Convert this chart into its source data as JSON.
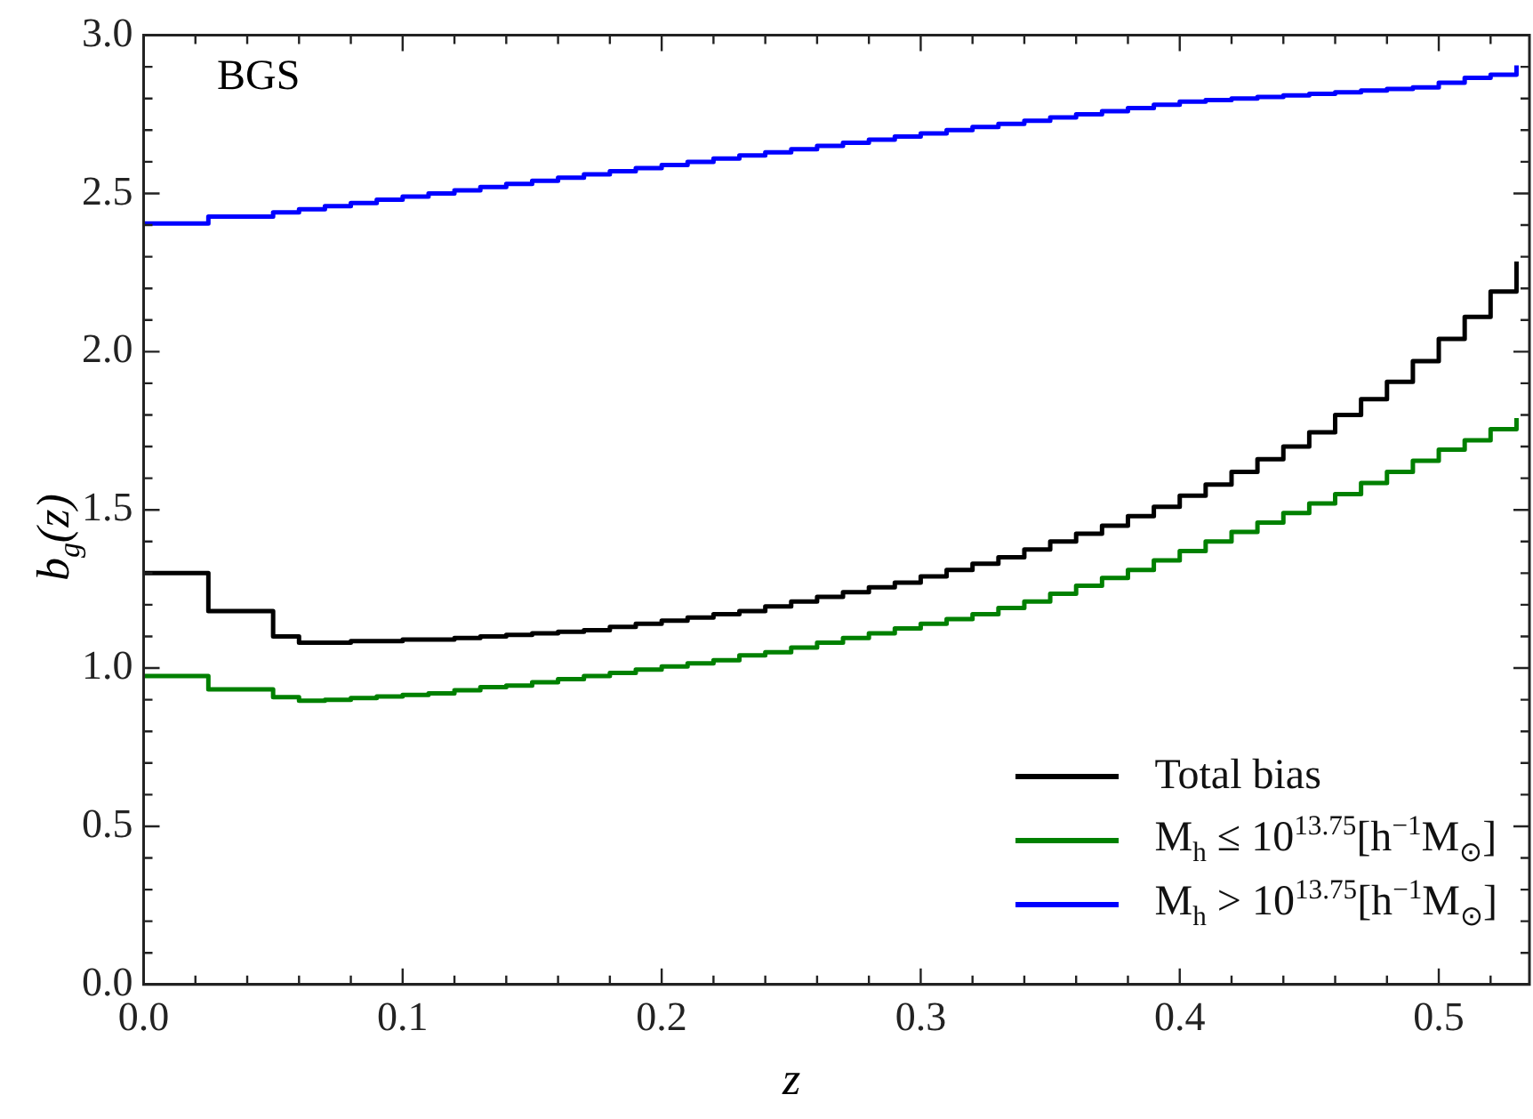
{
  "chart_data": {
    "type": "step",
    "xlabel": "z",
    "ylabel": "b$_{g}$(z)",
    "annotations": [
      "BGS"
    ],
    "x": [
      0,
      0.025,
      0.05,
      0.06,
      0.07,
      0.08,
      0.09,
      0.1,
      0.11,
      0.12,
      0.13,
      0.14,
      0.15,
      0.16,
      0.17,
      0.18,
      0.19,
      0.2,
      0.21,
      0.22,
      0.23,
      0.24,
      0.25,
      0.26,
      0.27,
      0.28,
      0.29,
      0.3,
      0.31,
      0.32,
      0.33,
      0.34,
      0.35,
      0.36,
      0.37,
      0.38,
      0.39,
      0.4,
      0.41,
      0.42,
      0.43,
      0.44,
      0.45,
      0.46,
      0.47,
      0.48,
      0.49,
      0.5,
      0.51,
      0.52,
      0.53
    ],
    "series": [
      {
        "name": "Total bias",
        "color": "#000000",
        "values": [
          1.3,
          1.18,
          1.1,
          1.08,
          1.08,
          1.085,
          1.085,
          1.09,
          1.09,
          1.095,
          1.1,
          1.105,
          1.11,
          1.115,
          1.12,
          1.13,
          1.14,
          1.15,
          1.16,
          1.17,
          1.18,
          1.195,
          1.21,
          1.225,
          1.24,
          1.255,
          1.27,
          1.29,
          1.31,
          1.33,
          1.35,
          1.375,
          1.4,
          1.425,
          1.45,
          1.48,
          1.51,
          1.545,
          1.58,
          1.62,
          1.66,
          1.7,
          1.745,
          1.8,
          1.85,
          1.905,
          1.97,
          2.04,
          2.11,
          2.19,
          2.285
        ]
      },
      {
        "name": "M$_{h}$ ≤ 10$^{13.75}$[h$^{−1}$M$_{⊙}$]",
        "color": "#008000",
        "values": [
          0.975,
          0.933,
          0.908,
          0.897,
          0.9,
          0.905,
          0.91,
          0.915,
          0.92,
          0.93,
          0.94,
          0.945,
          0.955,
          0.965,
          0.975,
          0.985,
          0.995,
          1.005,
          1.015,
          1.025,
          1.04,
          1.05,
          1.065,
          1.08,
          1.095,
          1.11,
          1.125,
          1.14,
          1.155,
          1.17,
          1.19,
          1.21,
          1.235,
          1.26,
          1.285,
          1.31,
          1.34,
          1.37,
          1.4,
          1.43,
          1.46,
          1.49,
          1.52,
          1.55,
          1.585,
          1.62,
          1.655,
          1.69,
          1.72,
          1.755,
          1.79
        ]
      },
      {
        "name": "M$_{h}$ > 10$^{13.75}$[h$^{−1}$M$_{⊙}$]",
        "color": "#0000ff",
        "values": [
          2.405,
          2.427,
          2.44,
          2.45,
          2.46,
          2.47,
          2.48,
          2.49,
          2.5,
          2.51,
          2.52,
          2.53,
          2.54,
          2.55,
          2.56,
          2.57,
          2.58,
          2.59,
          2.6,
          2.61,
          2.62,
          2.63,
          2.64,
          2.65,
          2.66,
          2.67,
          2.68,
          2.69,
          2.7,
          2.71,
          2.72,
          2.73,
          2.74,
          2.75,
          2.76,
          2.77,
          2.78,
          2.79,
          2.795,
          2.8,
          2.805,
          2.81,
          2.815,
          2.82,
          2.825,
          2.83,
          2.835,
          2.85,
          2.865,
          2.875,
          2.905
        ]
      }
    ],
    "xlim": [
      0,
      0.535
    ],
    "xticks": [
      {
        "value": 0,
        "label": "0.0"
      },
      {
        "value": 0.02,
        "label": null
      },
      {
        "value": 0.04,
        "label": null
      },
      {
        "value": 0.06,
        "label": null
      },
      {
        "value": 0.08,
        "label": null
      },
      0.1,
      {
        "value": 0.12,
        "label": null
      },
      {
        "value": 0.14,
        "label": null
      },
      {
        "value": 0.16,
        "label": null
      },
      {
        "value": 0.18,
        "label": null
      },
      0.2,
      {
        "value": 0.22,
        "label": null
      },
      {
        "value": 0.24,
        "label": null
      },
      {
        "value": 0.26,
        "label": null
      },
      {
        "value": 0.28,
        "label": null
      },
      0.3,
      {
        "value": 0.32,
        "label": null
      },
      {
        "value": 0.34,
        "label": null
      },
      {
        "value": 0.36,
        "label": null
      },
      {
        "value": 0.38,
        "label": null
      },
      0.4,
      {
        "value": 0.42,
        "label": null
      },
      {
        "value": 0.44,
        "label": null
      },
      {
        "value": 0.46,
        "label": null
      },
      {
        "value": 0.48,
        "label": null
      },
      0.5,
      {
        "value": 0.52,
        "label": null
      }
    ],
    "ylim": [
      0,
      3
    ],
    "yticks": [
      {
        "value": 0,
        "label": "0.0"
      },
      {
        "value": 0.1,
        "label": null
      },
      {
        "value": 0.2,
        "label": null
      },
      {
        "value": 0.3,
        "label": null
      },
      {
        "value": 0.4,
        "label": null
      },
      0.5,
      {
        "value": 0.6,
        "label": null
      },
      {
        "value": 0.7,
        "label": null
      },
      {
        "value": 0.8,
        "label": null
      },
      {
        "value": 0.9,
        "label": null
      },
      {
        "value": 1,
        "label": "1.0"
      },
      {
        "value": 1.1,
        "label": null
      },
      {
        "value": 1.2,
        "label": null
      },
      {
        "value": 1.3,
        "label": null
      },
      {
        "value": 1.4,
        "label": null
      },
      1.5,
      {
        "value": 1.6,
        "label": null
      },
      {
        "value": 1.7,
        "label": null
      },
      {
        "value": 1.8,
        "label": null
      },
      {
        "value": 1.9,
        "label": null
      },
      {
        "value": 2,
        "label": "2.0"
      },
      {
        "value": 2.1,
        "label": null
      },
      {
        "value": 2.2,
        "label": null
      },
      {
        "value": 2.3,
        "label": null
      },
      {
        "value": 2.4,
        "label": null
      },
      2.5,
      {
        "value": 2.6,
        "label": null
      },
      {
        "value": 2.7,
        "label": null
      },
      {
        "value": 2.8,
        "label": null
      },
      {
        "value": 2.9,
        "label": null
      },
      {
        "value": 3,
        "label": "3.0"
      }
    ],
    "grid": false,
    "legend": "bottom right",
    "line_style": "solid",
    "marker": "none"
  }
}
